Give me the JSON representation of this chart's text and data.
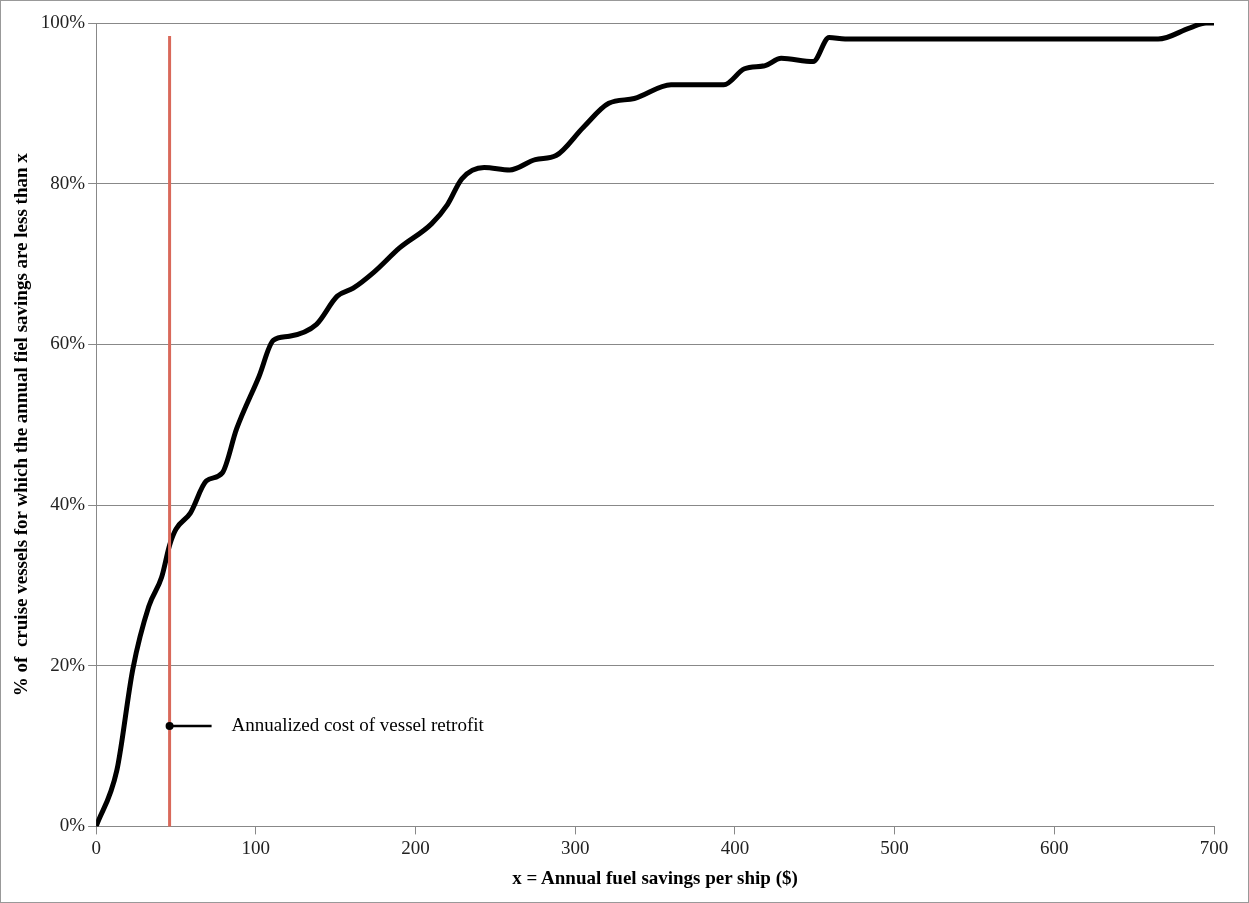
{
  "chart_data": {
    "type": "line",
    "xlabel": "x = Annual fuel savings per ship ($)",
    "ylabel": "% of  cruise vessels for which the annual fiel savings are less than x",
    "series": [
      {
        "color": "#000000",
        "x": [
          0,
          13,
          23,
          33,
          41,
          46,
          50,
          59,
          69,
          79,
          88,
          102,
          111,
          121,
          138,
          151,
          161,
          174,
          190,
          210,
          220,
          229,
          243,
          259,
          275,
          288,
          305,
          321,
          337,
          360,
          377,
          393,
          406,
          419,
          429,
          449,
          459,
          469,
          665,
          685,
          695,
          700
        ],
        "values": [
          0,
          7,
          19.6,
          27.4,
          31,
          35,
          37,
          39,
          43,
          44,
          49.5,
          56,
          60.5,
          61,
          62.5,
          66,
          67,
          69,
          72,
          75,
          77.4,
          80.6,
          82,
          81.7,
          83,
          83.5,
          87,
          90,
          90.6,
          92.3,
          92.3,
          92.3,
          94.3,
          94.7,
          95.6,
          95.2,
          98.2,
          98,
          98,
          99.4,
          100,
          100
        ]
      }
    ],
    "xlim": [
      0,
      700
    ],
    "xticks": [
      0,
      100,
      200,
      300,
      400,
      500,
      600,
      700
    ],
    "ylim": [
      0,
      100
    ],
    "yticks": [
      {
        "value": 0,
        "label": "0%"
      },
      {
        "value": 20,
        "label": "20%"
      },
      {
        "value": 40,
        "label": "40%"
      },
      {
        "value": 60,
        "label": "60%"
      },
      {
        "value": 80,
        "label": "80%"
      },
      {
        "value": 100,
        "label": "100%"
      }
    ],
    "ref_lines": [
      {
        "axis": "x",
        "value": 46,
        "label": "Annualized cost of vessel retrofit",
        "color": "#d9695a"
      }
    ],
    "grid": "y",
    "marker": "none",
    "line_style": "solid"
  }
}
